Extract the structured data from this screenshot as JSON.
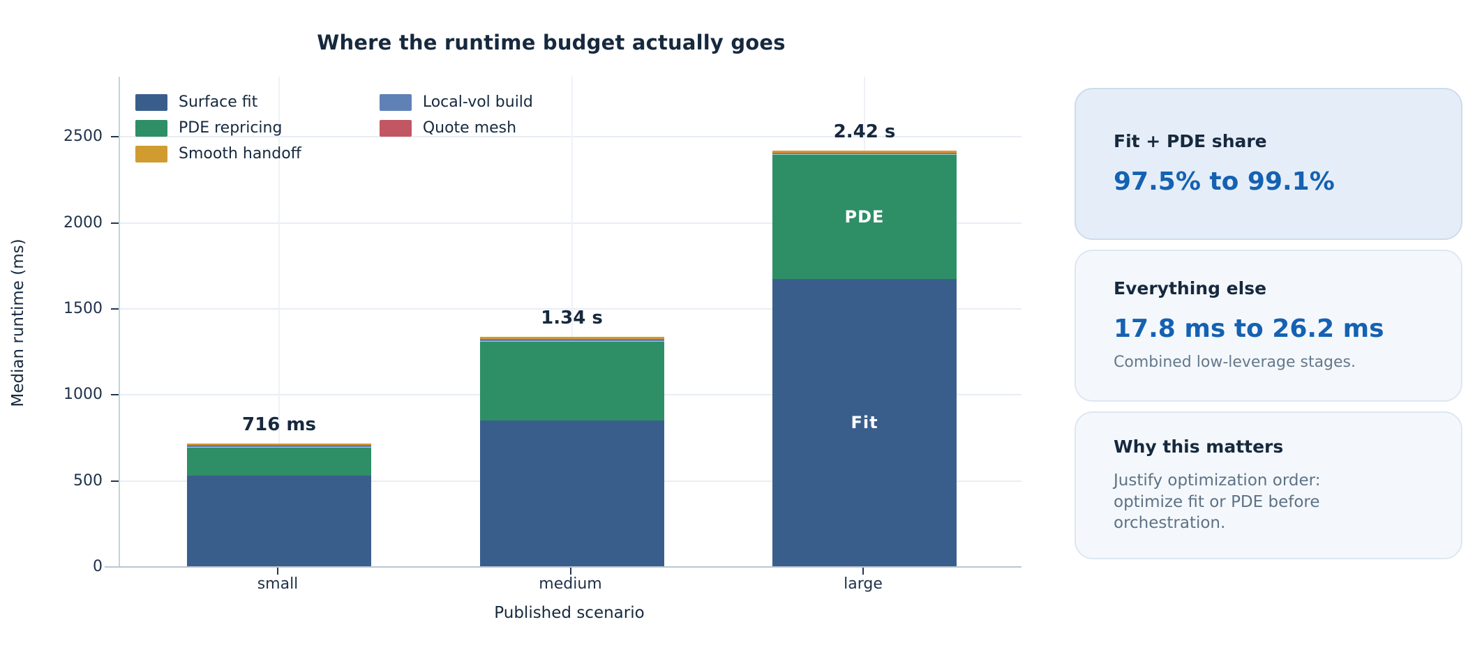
{
  "title": "Where the runtime budget actually goes",
  "colors": {
    "navy_text": "#16293e",
    "accent_blue": "#1561b2",
    "muted_gray": "#64788c",
    "grid": "#e8edf4",
    "axis": "#b9c6d4"
  },
  "chart_data": {
    "type": "bar",
    "stacked": true,
    "title": "Where the runtime budget actually goes",
    "xlabel": "Published scenario",
    "ylabel": "Median runtime (ms)",
    "ylim": [
      0,
      2850
    ],
    "yticks": [
      0,
      500,
      1000,
      1500,
      2000,
      2500
    ],
    "grid": true,
    "legend_position": "upper-left-inside",
    "categories": [
      "small",
      "medium",
      "large"
    ],
    "series": [
      {
        "name": "Surface fit",
        "color": "#3a5e8c",
        "values": [
          530.0,
          850.0,
          1675.0
        ]
      },
      {
        "name": "PDE repricing",
        "color": "#2e8f66",
        "values": [
          168.2,
          461.8,
          723.2
        ]
      },
      {
        "name": "Smooth handoff",
        "color": "#d09c2f",
        "values": [
          8.0,
          12.0,
          10.0
        ]
      },
      {
        "name": "Local-vol build",
        "color": "#6081b6",
        "values": [
          6.0,
          8.9,
          7.0
        ]
      },
      {
        "name": "Quote mesh",
        "color": "#c25663",
        "values": [
          3.8,
          5.3,
          4.8
        ]
      }
    ],
    "stack_order": [
      "Surface fit",
      "PDE repricing",
      "Local-vol build",
      "Quote mesh",
      "Smooth handoff"
    ],
    "totals_ms": [
      716,
      1338,
      2420
    ],
    "total_labels": [
      "716 ms",
      "1.34 s",
      "2.42 s"
    ],
    "legend_columns": [
      [
        "Surface fit",
        "PDE repricing",
        "Smooth handoff"
      ],
      [
        "Local-vol build",
        "Quote mesh"
      ]
    ],
    "annotations": [
      {
        "category": "large",
        "series": "Surface fit",
        "label": "Fit"
      },
      {
        "category": "large",
        "series": "PDE repricing",
        "label": "PDE"
      }
    ]
  },
  "cards": {
    "fit_pde": {
      "title": "Fit + PDE share",
      "value": "97.5% to 99.1%"
    },
    "everything_else": {
      "title": "Everything else",
      "value": "17.8 ms to 26.2 ms",
      "caption": "Combined low-leverage stages."
    },
    "why": {
      "title": "Why this matters",
      "line1": "Justify optimization order:",
      "line2": "optimize fit or PDE before orchestration."
    }
  }
}
